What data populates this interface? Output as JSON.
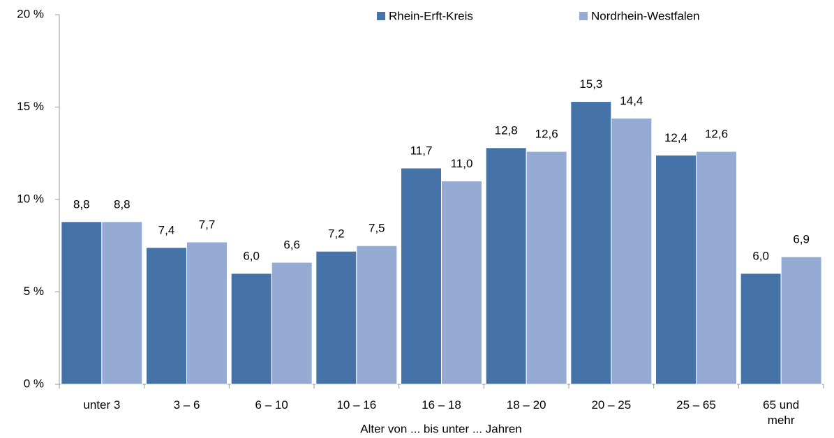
{
  "chart_data": {
    "type": "bar",
    "x_label": "Alter von ... bis unter ... Jahren",
    "categories": [
      "unter 3",
      "3 –  6",
      "6 – 10",
      "10 – 16",
      "16 – 18",
      "18 – 20",
      "20 – 25",
      "25 – 65",
      "65 und mehr"
    ],
    "series": [
      {
        "name": "Rhein-Erft-Kreis",
        "color": "#4572a7",
        "values": [
          8.8,
          7.4,
          6.0,
          7.2,
          11.7,
          12.8,
          15.3,
          12.4,
          6.0
        ],
        "value_labels": [
          "8,8",
          "7,4",
          "6,0",
          "7,2",
          "11,7",
          "12,8",
          "15,3",
          "12,4",
          "6,0"
        ]
      },
      {
        "name": "Nordrhein-Westfalen",
        "color": "#95abd4",
        "values": [
          8.8,
          7.7,
          6.6,
          7.5,
          11.0,
          12.6,
          14.4,
          12.6,
          6.9
        ],
        "value_labels": [
          "8,8",
          "7,7",
          "6,6",
          "7,5",
          "11,0",
          "12,6",
          "14,4",
          "12,6",
          "6,9"
        ]
      }
    ],
    "ylim": [
      0,
      20
    ],
    "yticks": [
      {
        "value": 0,
        "label": "0 %"
      },
      {
        "value": 5,
        "label": "5 %"
      },
      {
        "value": 10,
        "label": "10 %"
      },
      {
        "value": 15,
        "label": "15 %"
      },
      {
        "value": 20,
        "label": "20 %"
      }
    ],
    "legend": "top"
  }
}
